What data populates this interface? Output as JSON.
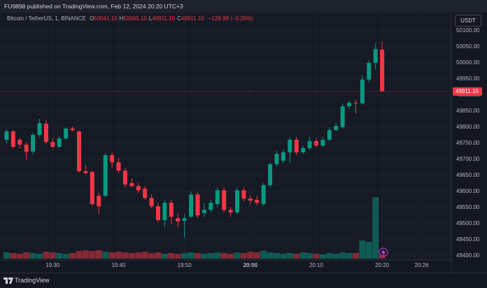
{
  "header": "FU9898 published on TradingView.com, Feb 12, 2024 20:20 UTC+3",
  "footer": "TradingView",
  "chart_data": {
    "type": "candlestick",
    "legend": {
      "symbol": "Bitcoin / TetherUS, 1, BINANCE",
      "items": [
        {
          "key": "O",
          "value": "50041.10"
        },
        {
          "key": "H",
          "value": "50065.10"
        },
        {
          "key": "L",
          "value": "49911.10"
        },
        {
          "key": "C",
          "value": "49911.10"
        }
      ],
      "change": "−129.99 (−0.26%)"
    },
    "currency": "USDT",
    "up_color": "#089981",
    "down_color": "#f23645",
    "grid": true,
    "x": [
      1163,
      1164,
      1165,
      1166,
      1167,
      1168,
      1169,
      1170,
      1171,
      1172,
      1173,
      1174,
      1175,
      1176,
      1177,
      1178,
      1179,
      1180,
      1181,
      1182,
      1183,
      1184,
      1185,
      1186,
      1187,
      1188,
      1189,
      1190,
      1191,
      1192,
      1193,
      1194,
      1195,
      1196,
      1197,
      1198,
      1199,
      1200,
      1201,
      1202,
      1203,
      1204,
      1205,
      1206,
      1207,
      1208,
      1209,
      1210,
      1211,
      1212,
      1213,
      1214,
      1215,
      1216,
      1217,
      1218,
      1219,
      1220
    ],
    "open": [
      49761,
      49787,
      49761,
      49746,
      49724,
      49776,
      49811,
      49754,
      49739,
      49765,
      49796,
      49787,
      49663,
      49661,
      49587,
      49587,
      49713,
      49691,
      49665,
      49626,
      49617,
      49609,
      49580,
      49554,
      49511,
      49565,
      49517,
      49509,
      49522,
      49591,
      49533,
      49543,
      49561,
      49604,
      49543,
      49535,
      49604,
      49578,
      49574,
      49561,
      49620,
      49685,
      49696,
      49722,
      49761,
      49722,
      49735,
      49757,
      49743,
      49761,
      49791,
      49800,
      49865,
      49876,
      49874,
      49948,
      50000,
      50041.1
    ],
    "high": [
      49793,
      49791,
      49767,
      49752,
      49783,
      49826,
      49822,
      49765,
      49772,
      49800,
      49802,
      49791,
      49683,
      49665,
      49596,
      49720,
      49722,
      49704,
      49674,
      49641,
      49626,
      49617,
      49591,
      49565,
      49574,
      49574,
      49533,
      49530,
      49600,
      49598,
      49565,
      49574,
      49613,
      49613,
      49552,
      49613,
      49613,
      49587,
      49587,
      49626,
      49691,
      49726,
      49730,
      49770,
      49770,
      49743,
      49770,
      49765,
      49770,
      49800,
      49813,
      49874,
      49883,
      49885,
      49961,
      50009,
      50061,
      50065.1
    ],
    "low": [
      49750,
      49733,
      49735,
      49700,
      49717,
      49770,
      49750,
      49735,
      49735,
      49761,
      49787,
      49659,
      49652,
      49556,
      49530,
      49583,
      49674,
      49657,
      49613,
      49613,
      49596,
      49574,
      49548,
      49504,
      49489,
      49500,
      49489,
      49456,
      49517,
      49517,
      49522,
      49535,
      49552,
      49535,
      49522,
      49530,
      49570,
      49561,
      49556,
      49556,
      49613,
      49678,
      49687,
      49691,
      49713,
      49717,
      49730,
      49737,
      49739,
      49757,
      49787,
      49796,
      49857,
      49843,
      49870,
      49939,
      49978,
      49911.1
    ],
    "close": [
      49787,
      49739,
      49746,
      49724,
      49776,
      49813,
      49754,
      49739,
      49765,
      49796,
      49791,
      49663,
      49657,
      49561,
      49554,
      49713,
      49691,
      49665,
      49622,
      49617,
      49604,
      49580,
      49554,
      49511,
      49565,
      49522,
      49507,
      49517,
      49591,
      49526,
      49543,
      49565,
      49604,
      49543,
      49535,
      49604,
      49578,
      49572,
      49565,
      49620,
      49685,
      49717,
      49722,
      49761,
      49722,
      49735,
      49757,
      49743,
      49761,
      49791,
      49804,
      49865,
      49876,
      49874,
      49948,
      50000,
      50043,
      49911.1
    ],
    "volume": [
      9,
      8,
      7,
      9,
      8,
      7,
      10,
      9,
      8,
      7,
      8,
      11,
      12,
      11,
      12,
      10,
      9,
      10,
      9,
      8,
      9,
      10,
      8,
      9,
      7,
      8,
      7,
      8,
      9,
      8,
      7,
      8,
      9,
      8,
      7,
      9,
      8,
      10,
      9,
      11,
      9,
      8,
      7,
      8,
      7,
      9,
      8,
      7,
      6,
      8,
      7,
      9,
      8,
      8,
      26,
      24,
      88,
      6
    ],
    "xlim": [
      1162,
      1230.5
    ],
    "xticks": [
      {
        "value": 1170,
        "label": "19:30"
      },
      {
        "value": 1180,
        "label": "19:40"
      },
      {
        "value": 1190,
        "label": "19:50"
      },
      {
        "value": 1200,
        "label": "20:00"
      },
      {
        "value": 1210,
        "label": "20:10"
      },
      {
        "value": 1220,
        "label": "20:20"
      },
      {
        "value": 1226,
        "label": "20:26"
      }
    ],
    "ylim": [
      49387,
      50156.5
    ],
    "yticks": [
      {
        "value": 50100,
        "label": "50100.00"
      },
      {
        "value": 50050,
        "label": "50050.00"
      },
      {
        "value": 50000,
        "label": "50000.00"
      },
      {
        "value": 49950,
        "label": "49950.00"
      },
      {
        "value": 49900,
        "label": "49900.00"
      },
      {
        "value": 49850,
        "label": "49850.00"
      },
      {
        "value": 49800,
        "label": "49800.00"
      },
      {
        "value": 49750,
        "label": "49750.00"
      },
      {
        "value": 49700,
        "label": "49700.00"
      },
      {
        "value": 49650,
        "label": "49650.00"
      },
      {
        "value": 49600,
        "label": "49600.00"
      },
      {
        "value": 49550,
        "label": "49550.00"
      },
      {
        "value": 49500,
        "label": "49500.00"
      },
      {
        "value": 49450,
        "label": "49450.00"
      },
      {
        "value": 49400,
        "label": "49400.00"
      }
    ],
    "last_price": {
      "value": 49911.1,
      "label": "49911.10"
    }
  }
}
